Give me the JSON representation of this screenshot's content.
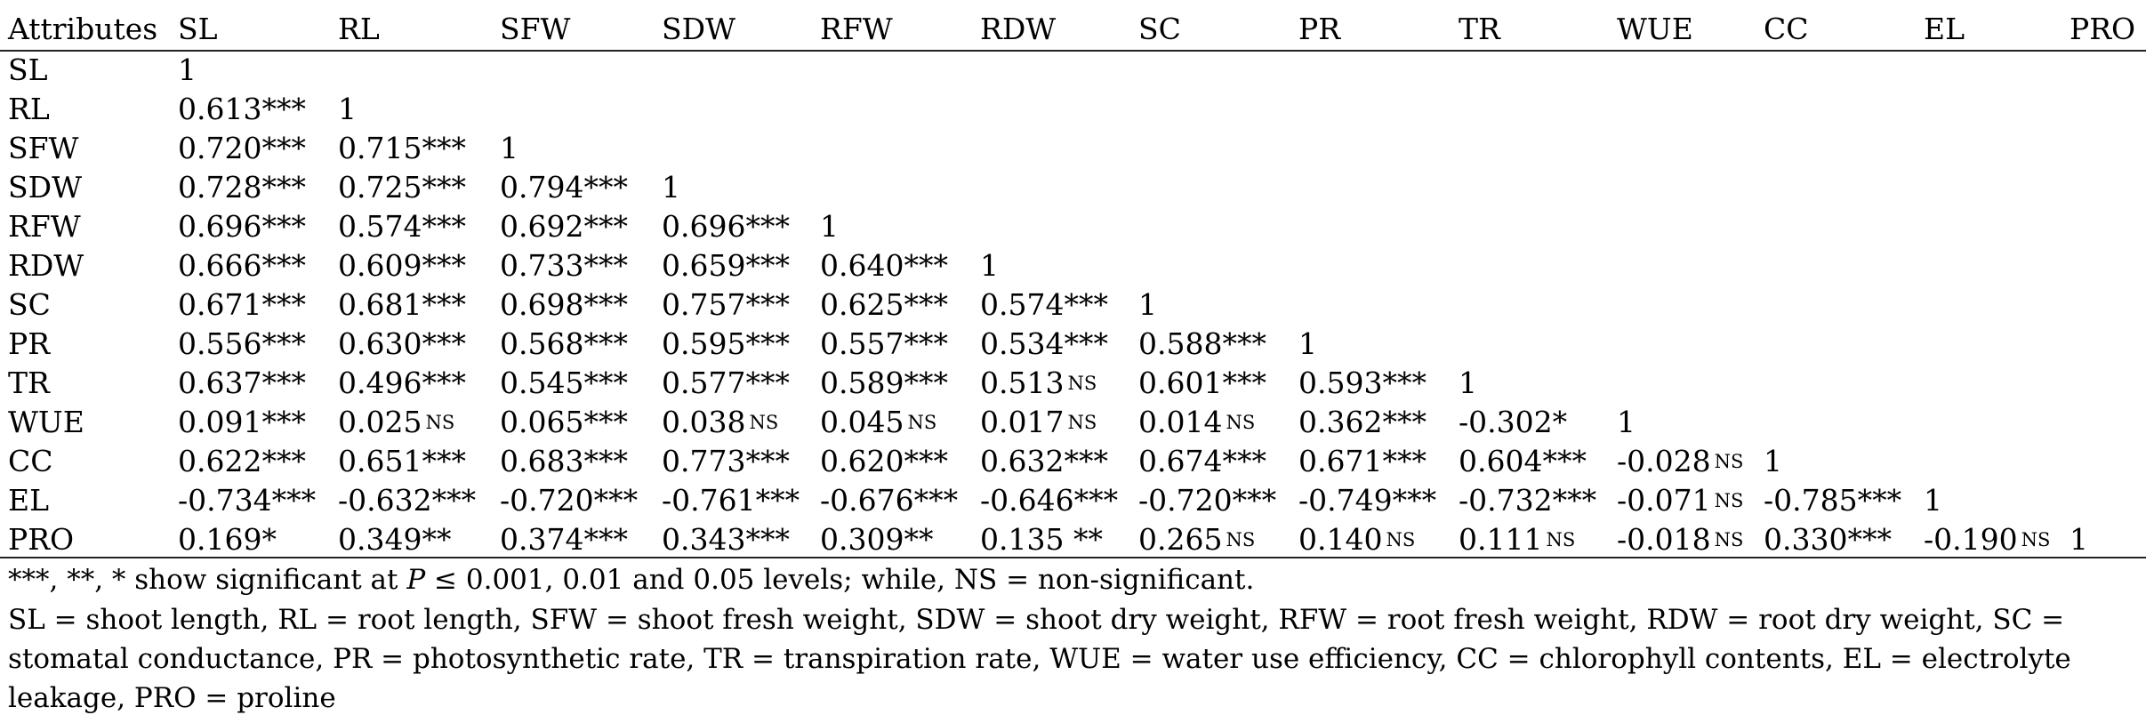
{
  "table": {
    "corner_header": "Attributes",
    "columns": [
      "SL",
      "RL",
      "SFW",
      "SDW",
      "RFW",
      "RDW",
      "SC",
      "PR",
      "TR",
      "WUE",
      "CC",
      "EL",
      "PRO"
    ],
    "rows": [
      {
        "label": "SL",
        "cells": [
          [
            "1",
            ""
          ]
        ]
      },
      {
        "label": "RL",
        "cells": [
          [
            "0.613***",
            ""
          ],
          [
            "1",
            ""
          ]
        ]
      },
      {
        "label": "SFW",
        "cells": [
          [
            "0.720***",
            ""
          ],
          [
            "0.715***",
            ""
          ],
          [
            "1",
            ""
          ]
        ]
      },
      {
        "label": "SDW",
        "cells": [
          [
            "0.728***",
            ""
          ],
          [
            "0.725***",
            ""
          ],
          [
            "0.794***",
            ""
          ],
          [
            "1",
            ""
          ]
        ]
      },
      {
        "label": "RFW",
        "cells": [
          [
            "0.696***",
            ""
          ],
          [
            "0.574***",
            ""
          ],
          [
            "0.692***",
            ""
          ],
          [
            "0.696***",
            ""
          ],
          [
            "1",
            ""
          ]
        ]
      },
      {
        "label": "RDW",
        "cells": [
          [
            "0.666***",
            ""
          ],
          [
            "0.609***",
            ""
          ],
          [
            "0.733***",
            ""
          ],
          [
            "0.659***",
            ""
          ],
          [
            "0.640***",
            ""
          ],
          [
            "1",
            ""
          ]
        ]
      },
      {
        "label": "SC",
        "cells": [
          [
            "0.671***",
            ""
          ],
          [
            "0.681***",
            ""
          ],
          [
            "0.698***",
            ""
          ],
          [
            "0.757***",
            ""
          ],
          [
            "0.625***",
            ""
          ],
          [
            "0.574***",
            ""
          ],
          [
            "1",
            ""
          ]
        ]
      },
      {
        "label": "PR",
        "cells": [
          [
            "0.556***",
            ""
          ],
          [
            "0.630***",
            ""
          ],
          [
            "0.568***",
            ""
          ],
          [
            "0.595***",
            ""
          ],
          [
            "0.557***",
            ""
          ],
          [
            "0.534***",
            ""
          ],
          [
            "0.588***",
            ""
          ],
          [
            "1",
            ""
          ]
        ]
      },
      {
        "label": "TR",
        "cells": [
          [
            "0.637***",
            ""
          ],
          [
            "0.496***",
            ""
          ],
          [
            "0.545***",
            ""
          ],
          [
            "0.577***",
            ""
          ],
          [
            "0.589***",
            ""
          ],
          [
            "0.513",
            "NS"
          ],
          [
            "0.601***",
            ""
          ],
          [
            "0.593***",
            ""
          ],
          [
            "1",
            ""
          ]
        ]
      },
      {
        "label": "WUE",
        "cells": [
          [
            "0.091***",
            ""
          ],
          [
            "0.025",
            "NS"
          ],
          [
            "0.065***",
            ""
          ],
          [
            "0.038",
            "NS"
          ],
          [
            "0.045",
            "NS"
          ],
          [
            "0.017",
            "NS"
          ],
          [
            "0.014",
            "NS"
          ],
          [
            "0.362***",
            ""
          ],
          [
            "-0.302*",
            ""
          ],
          [
            "1",
            ""
          ]
        ]
      },
      {
        "label": "CC",
        "cells": [
          [
            "0.622***",
            ""
          ],
          [
            "0.651***",
            ""
          ],
          [
            "0.683***",
            ""
          ],
          [
            "0.773***",
            ""
          ],
          [
            "0.620***",
            ""
          ],
          [
            "0.632***",
            ""
          ],
          [
            "0.674***",
            ""
          ],
          [
            "0.671***",
            ""
          ],
          [
            "0.604***",
            ""
          ],
          [
            "-0.028",
            "NS"
          ],
          [
            "1",
            ""
          ]
        ]
      },
      {
        "label": "EL",
        "cells": [
          [
            "-0.734***",
            ""
          ],
          [
            "-0.632***",
            ""
          ],
          [
            "-0.720***",
            ""
          ],
          [
            "-0.761***",
            ""
          ],
          [
            "-0.676***",
            ""
          ],
          [
            "-0.646***",
            ""
          ],
          [
            "-0.720***",
            ""
          ],
          [
            "-0.749***",
            ""
          ],
          [
            "-0.732***",
            ""
          ],
          [
            "-0.071",
            "NS"
          ],
          [
            "-0.785***",
            ""
          ],
          [
            "1",
            ""
          ]
        ]
      },
      {
        "label": "PRO",
        "cells": [
          [
            "0.169*",
            ""
          ],
          [
            "0.349**",
            ""
          ],
          [
            "0.374***",
            ""
          ],
          [
            "0.343***",
            ""
          ],
          [
            "0.309**",
            ""
          ],
          [
            "0.135 **",
            ""
          ],
          [
            "0.265",
            "NS"
          ],
          [
            "0.140",
            "NS"
          ],
          [
            "0.111",
            "NS"
          ],
          [
            "-0.018",
            "NS"
          ],
          [
            "0.330***",
            ""
          ],
          [
            "-0.190",
            "NS"
          ],
          [
            "1",
            ""
          ]
        ]
      }
    ]
  },
  "footnotes": {
    "significance_pre": "***, **, * show significant at ",
    "significance_p": "P",
    "significance_post": " ≤ 0.001, 0.01 and 0.05 levels; while, NS = non-significant.",
    "abbrev_line1": "SL = shoot length, RL = root length, SFW = shoot fresh weight, SDW = shoot dry weight, RFW = root fresh weight, RDW = root dry weight, SC =",
    "abbrev_line2": "stomatal conductance, PR = photosynthetic rate, TR = transpiration rate, WUE = water use efficiency, CC = chlorophyll contents, EL = electrolyte",
    "abbrev_line3": "leakage, PRO = proline"
  }
}
